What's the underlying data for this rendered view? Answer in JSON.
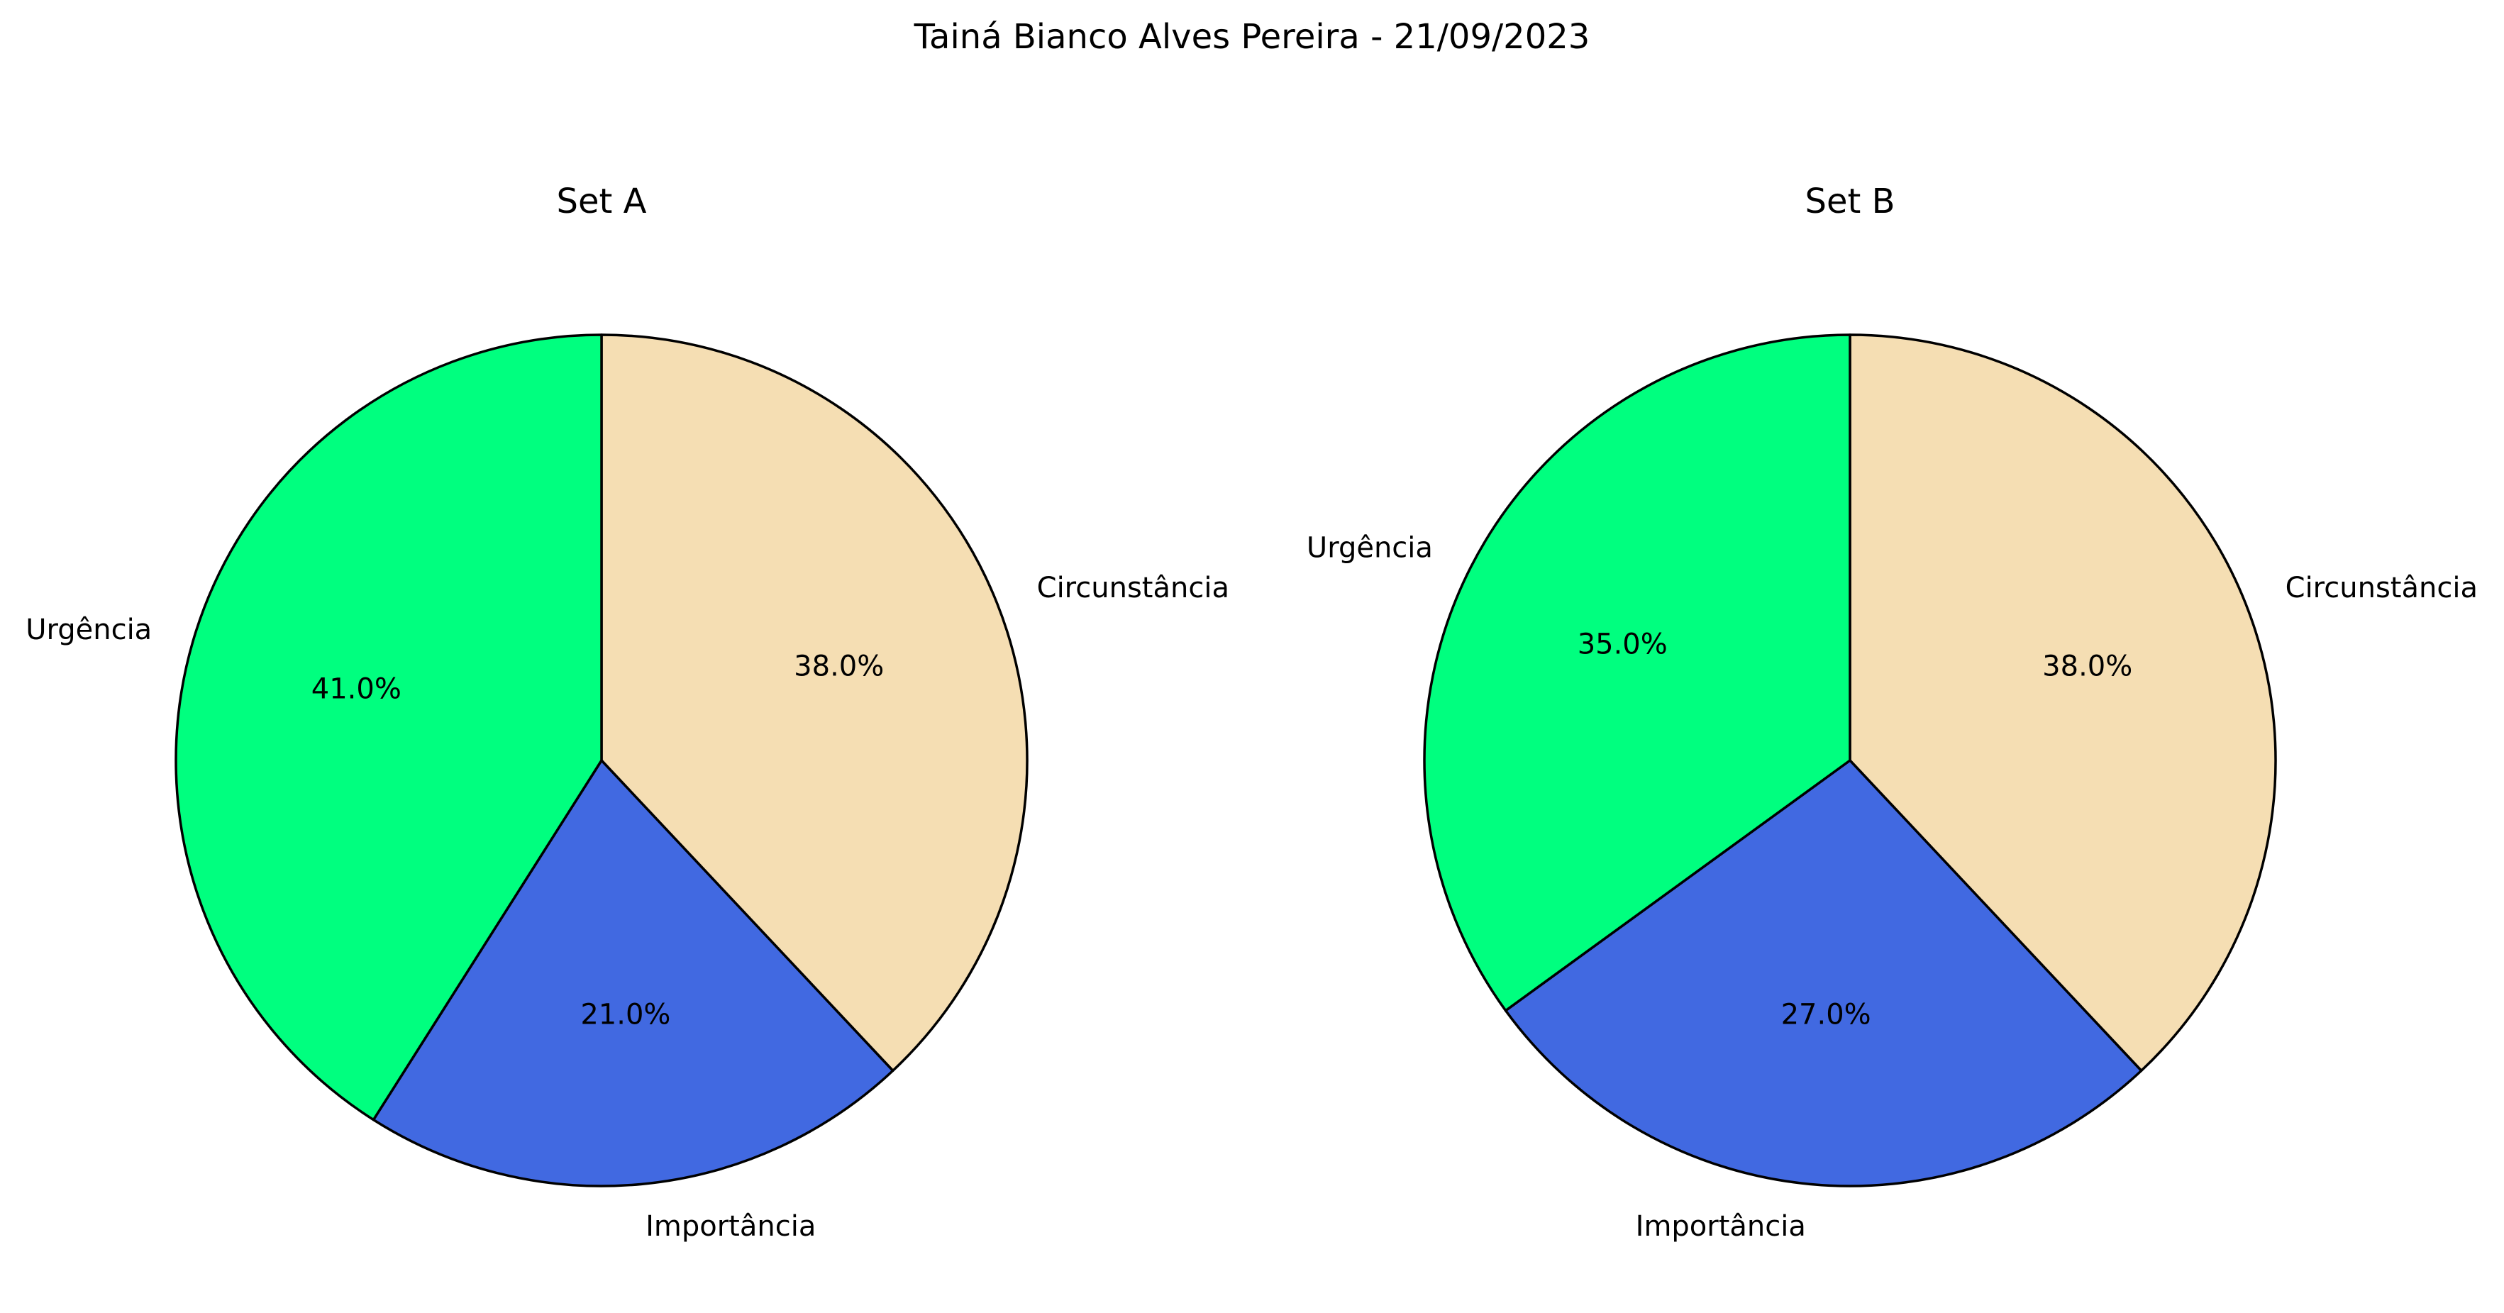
{
  "figure": {
    "title": "Tainá Bianco Alves Pereira - 21/09/2023"
  },
  "chart_data": [
    {
      "type": "pie",
      "title": "Set A",
      "start_angle_deg": 90,
      "direction": "clockwise",
      "slices": [
        {
          "label": "Circunstância",
          "value": 38.0,
          "pct_text": "38.0%",
          "color": "#F5DEB3"
        },
        {
          "label": "Importância",
          "value": 21.0,
          "pct_text": "21.0%",
          "color": "#4169E1"
        },
        {
          "label": "Urgência",
          "value": 41.0,
          "pct_text": "41.0%",
          "color": "#00FF7F"
        }
      ]
    },
    {
      "type": "pie",
      "title": "Set B",
      "start_angle_deg": 90,
      "direction": "clockwise",
      "slices": [
        {
          "label": "Circunstância",
          "value": 38.0,
          "pct_text": "38.0%",
          "color": "#F5DEB3"
        },
        {
          "label": "Importância",
          "value": 27.0,
          "pct_text": "27.0%",
          "color": "#4169E1"
        },
        {
          "label": "Urgência",
          "value": 35.0,
          "pct_text": "35.0%",
          "color": "#00FF7F"
        }
      ]
    }
  ]
}
